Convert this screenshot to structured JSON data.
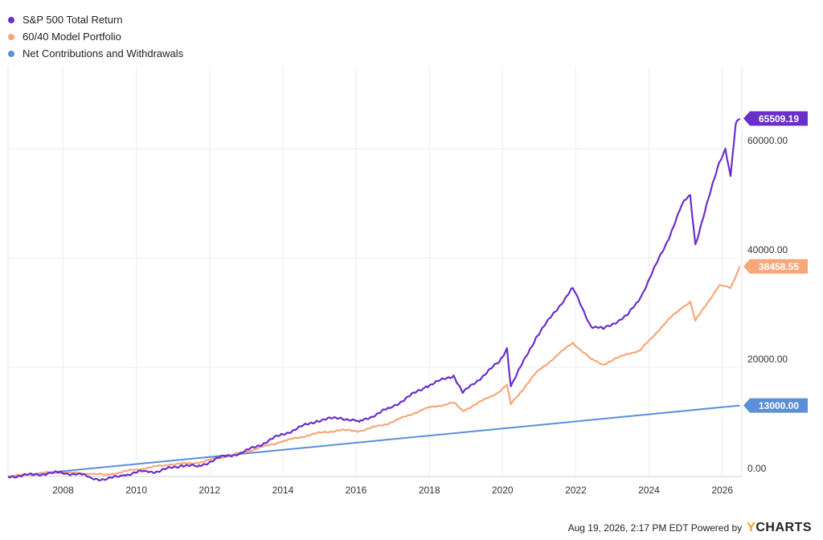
{
  "chart_data": {
    "type": "line",
    "title": "",
    "xlabel": "",
    "ylabel": "",
    "xlim": [
      "2006-07-01",
      "2026-07-15"
    ],
    "ylim": [
      0,
      75000
    ],
    "y_ticks": [
      0,
      20000,
      40000,
      60000
    ],
    "y_tick_labels": [
      "0.00",
      "20000.00",
      "40000.00",
      "60000.00"
    ],
    "x_tick_labels": [
      "2008",
      "2010",
      "2012",
      "2014",
      "2016",
      "2018",
      "2020",
      "2022",
      "2024",
      "2026"
    ],
    "grid": true,
    "legend_position": "top-left",
    "series": [
      {
        "name": "S&P 500 Total Return",
        "color": "#6a2fcb",
        "end_label": "65509.19",
        "points": [
          [
            "2006-07-01",
            0
          ],
          [
            "2007-03-01",
            300
          ],
          [
            "2007-10-01",
            700
          ],
          [
            "2008-06-01",
            500
          ],
          [
            "2008-10-01",
            -200
          ],
          [
            "2009-03-01",
            -600
          ],
          [
            "2009-09-01",
            300
          ],
          [
            "2010-04-01",
            1000
          ],
          [
            "2010-08-01",
            900
          ],
          [
            "2011-04-01",
            2100
          ],
          [
            "2011-09-01",
            1800
          ],
          [
            "2012-04-01",
            3400
          ],
          [
            "2012-12-01",
            4400
          ],
          [
            "2013-12-01",
            7500
          ],
          [
            "2014-12-01",
            10200
          ],
          [
            "2015-08-01",
            10800
          ],
          [
            "2016-02-01",
            10000
          ],
          [
            "2016-12-01",
            12500
          ],
          [
            "2017-12-01",
            16500
          ],
          [
            "2018-09-01",
            18500
          ],
          [
            "2018-12-01",
            15300
          ],
          [
            "2019-12-01",
            21000
          ],
          [
            "2020-02-15",
            23500
          ],
          [
            "2020-03-23",
            16500
          ],
          [
            "2020-12-01",
            25500
          ],
          [
            "2021-12-01",
            34500
          ],
          [
            "2022-06-01",
            27500
          ],
          [
            "2022-10-01",
            27000
          ],
          [
            "2023-06-01",
            29500
          ],
          [
            "2023-10-01",
            32500
          ],
          [
            "2024-07-01",
            43000
          ],
          [
            "2024-12-01",
            50000
          ],
          [
            "2025-02-15",
            51500
          ],
          [
            "2025-04-08",
            42500
          ],
          [
            "2025-12-01",
            57500
          ],
          [
            "2026-02-01",
            60000
          ],
          [
            "2026-03-25",
            55000
          ],
          [
            "2026-05-15",
            64500
          ],
          [
            "2026-06-25",
            65509.19
          ]
        ]
      },
      {
        "name": "60/40 Model Portfolio",
        "color": "#f7a77a",
        "end_label": "38458.55",
        "points": [
          [
            "2006-07-01",
            0
          ],
          [
            "2007-10-01",
            800
          ],
          [
            "2008-10-01",
            500
          ],
          [
            "2009-03-01",
            300
          ],
          [
            "2009-12-01",
            1200
          ],
          [
            "2010-12-01",
            2200
          ],
          [
            "2011-09-01",
            2500
          ],
          [
            "2012-12-01",
            4400
          ],
          [
            "2013-12-01",
            6300
          ],
          [
            "2014-12-01",
            7900
          ],
          [
            "2015-08-01",
            8500
          ],
          [
            "2016-02-01",
            8300
          ],
          [
            "2016-12-01",
            9800
          ],
          [
            "2017-12-01",
            12500
          ],
          [
            "2018-09-01",
            13500
          ],
          [
            "2018-12-01",
            12000
          ],
          [
            "2019-12-01",
            15500
          ],
          [
            "2020-02-15",
            16800
          ],
          [
            "2020-03-23",
            13200
          ],
          [
            "2020-12-01",
            19000
          ],
          [
            "2021-12-01",
            24500
          ],
          [
            "2022-06-01",
            21500
          ],
          [
            "2022-10-01",
            20500
          ],
          [
            "2023-06-01",
            22500
          ],
          [
            "2023-10-01",
            23000
          ],
          [
            "2024-07-01",
            28500
          ],
          [
            "2024-12-01",
            31000
          ],
          [
            "2025-02-15",
            32000
          ],
          [
            "2025-04-08",
            28500
          ],
          [
            "2025-12-01",
            35000
          ],
          [
            "2026-03-25",
            34500
          ],
          [
            "2026-06-25",
            38458.55
          ]
        ]
      },
      {
        "name": "Net Contributions and Withdrawals",
        "color": "#5b8fd8",
        "end_label": "13000.00",
        "points": [
          [
            "2006-07-01",
            0
          ],
          [
            "2026-06-25",
            13000
          ]
        ]
      }
    ]
  },
  "footer": {
    "timestamp": "Aug 19, 2026, 2:17 PM EDT Powered by",
    "brand_prefix": "Y",
    "brand_rest": "CHARTS"
  }
}
